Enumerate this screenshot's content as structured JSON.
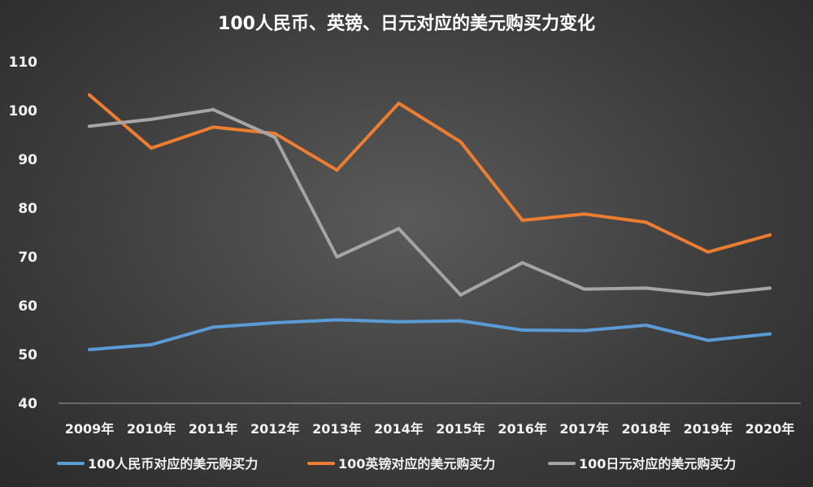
{
  "chart_data": {
    "type": "line",
    "title": "100人民币、英镑、日元对应的美元购买力变化",
    "categories": [
      "2009年",
      "2010年",
      "2011年",
      "2012年",
      "2013年",
      "2014年",
      "2015年",
      "2016年",
      "2017年",
      "2018年",
      "2019年",
      "2020年"
    ],
    "ylim": [
      40,
      110
    ],
    "yticks": [
      40,
      50,
      60,
      70,
      80,
      90,
      100,
      110
    ],
    "grid": false,
    "legend_position": "bottom",
    "series": [
      {
        "name": "100人民币对应的美元购买力",
        "color": "#5b9bd5",
        "values": [
          51.0,
          52.0,
          55.6,
          56.5,
          57.1,
          56.7,
          56.9,
          55.0,
          54.9,
          56.0,
          52.9,
          54.2
        ]
      },
      {
        "name": "100英镑对应的美元购买力",
        "color": "#ed7d31",
        "values": [
          103.2,
          92.3,
          96.6,
          95.3,
          87.8,
          101.5,
          93.6,
          77.5,
          78.8,
          77.1,
          71.0,
          74.5
        ]
      },
      {
        "name": "100日元对应的美元购买力",
        "color": "#a5a5a5",
        "values": [
          96.8,
          98.2,
          100.2,
          94.5,
          70.0,
          75.8,
          62.2,
          68.8,
          63.4,
          63.6,
          62.3,
          63.6
        ]
      }
    ]
  }
}
